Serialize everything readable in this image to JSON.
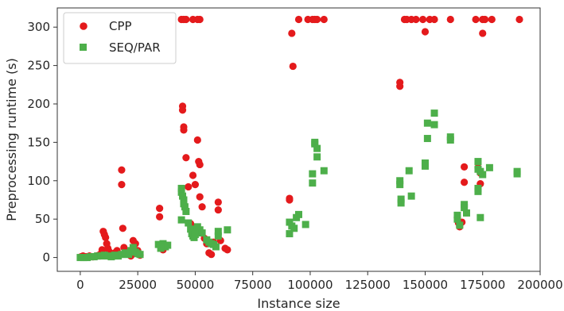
{
  "chart_data": {
    "type": "scatter",
    "xlabel": "Instance size",
    "ylabel": "Preprocessing runtime (s)",
    "xlim": [
      -10000,
      200000
    ],
    "ylim": [
      -18,
      325
    ],
    "xticks": [
      0,
      25000,
      50000,
      75000,
      100000,
      125000,
      150000,
      175000,
      200000
    ],
    "xtick_labels": [
      "0",
      "25000",
      "50000",
      "75000",
      "100000",
      "125000",
      "150000",
      "175000",
      "200000"
    ],
    "yticks": [
      0,
      50,
      100,
      150,
      200,
      250,
      300
    ],
    "ytick_labels": [
      "0",
      "50",
      "100",
      "150",
      "200",
      "250",
      "300"
    ],
    "grid": false,
    "legend_position": "top-left",
    "series": [
      {
        "name": "CPP",
        "color": "#e41a1c",
        "marker": "circle",
        "points": [
          [
            300,
            1
          ],
          [
            1200,
            2
          ],
          [
            2500,
            1
          ],
          [
            4000,
            2
          ],
          [
            5500,
            1
          ],
          [
            7000,
            2
          ],
          [
            8000,
            3
          ],
          [
            9000,
            5
          ],
          [
            9500,
            10
          ],
          [
            10000,
            34
          ],
          [
            10500,
            30
          ],
          [
            11000,
            26
          ],
          [
            11500,
            18
          ],
          [
            12000,
            12
          ],
          [
            12500,
            8
          ],
          [
            13000,
            4
          ],
          [
            14000,
            2
          ],
          [
            15000,
            6
          ],
          [
            16000,
            9
          ],
          [
            17000,
            3
          ],
          [
            18000,
            114
          ],
          [
            18000,
            95
          ],
          [
            18500,
            38
          ],
          [
            19000,
            13
          ],
          [
            20000,
            6
          ],
          [
            21000,
            4
          ],
          [
            22000,
            2
          ],
          [
            23000,
            22
          ],
          [
            24000,
            18
          ],
          [
            25000,
            9
          ],
          [
            26000,
            3
          ],
          [
            34500,
            64
          ],
          [
            34500,
            53
          ],
          [
            35000,
            16
          ],
          [
            36000,
            10
          ],
          [
            44000,
            310
          ],
          [
            45000,
            310
          ],
          [
            46000,
            310
          ],
          [
            49000,
            310
          ],
          [
            51000,
            310
          ],
          [
            52000,
            310
          ],
          [
            44500,
            197
          ],
          [
            44500,
            192
          ],
          [
            45000,
            170
          ],
          [
            45000,
            166
          ],
          [
            46000,
            130
          ],
          [
            47000,
            92
          ],
          [
            48000,
            44
          ],
          [
            48500,
            40
          ],
          [
            49000,
            107
          ],
          [
            50000,
            95
          ],
          [
            51000,
            153
          ],
          [
            51500,
            125
          ],
          [
            52000,
            121
          ],
          [
            52000,
            79
          ],
          [
            53000,
            66
          ],
          [
            54000,
            25
          ],
          [
            55000,
            18
          ],
          [
            56000,
            6
          ],
          [
            57000,
            4
          ],
          [
            58000,
            20
          ],
          [
            60000,
            72
          ],
          [
            60000,
            62
          ],
          [
            61000,
            22
          ],
          [
            63000,
            12
          ],
          [
            64000,
            10
          ],
          [
            91000,
            77
          ],
          [
            91000,
            75
          ],
          [
            92000,
            292
          ],
          [
            92500,
            249
          ],
          [
            95000,
            310
          ],
          [
            99000,
            310
          ],
          [
            101000,
            310
          ],
          [
            102000,
            310
          ],
          [
            103000,
            310
          ],
          [
            106000,
            310
          ],
          [
            139000,
            228
          ],
          [
            139000,
            223
          ],
          [
            141000,
            310
          ],
          [
            142000,
            310
          ],
          [
            144000,
            310
          ],
          [
            146000,
            310
          ],
          [
            149000,
            310
          ],
          [
            150000,
            294
          ],
          [
            152000,
            310
          ],
          [
            154000,
            310
          ],
          [
            161000,
            310
          ],
          [
            164000,
            52
          ],
          [
            164500,
            45
          ],
          [
            165000,
            40
          ],
          [
            166000,
            46
          ],
          [
            167000,
            118
          ],
          [
            167000,
            98
          ],
          [
            172000,
            310
          ],
          [
            173000,
            117
          ],
          [
            174000,
            110
          ],
          [
            174000,
            96
          ],
          [
            175000,
            310
          ],
          [
            175000,
            292
          ],
          [
            176000,
            310
          ],
          [
            179000,
            310
          ],
          [
            191000,
            310
          ]
        ]
      },
      {
        "name": "SEQ/PAR",
        "color": "#4daf4a",
        "marker": "square",
        "points": [
          [
            0,
            0
          ],
          [
            1500,
            0
          ],
          [
            3000,
            0
          ],
          [
            4500,
            1
          ],
          [
            6000,
            1
          ],
          [
            7500,
            2
          ],
          [
            9000,
            2
          ],
          [
            10500,
            3
          ],
          [
            12000,
            2
          ],
          [
            13500,
            1
          ],
          [
            15000,
            3
          ],
          [
            16500,
            2
          ],
          [
            18000,
            4
          ],
          [
            19500,
            6
          ],
          [
            21000,
            4
          ],
          [
            22000,
            9
          ],
          [
            23000,
            13
          ],
          [
            24000,
            7
          ],
          [
            25000,
            5
          ],
          [
            26000,
            4
          ],
          [
            34000,
            17
          ],
          [
            35000,
            12
          ],
          [
            36000,
            18
          ],
          [
            37000,
            14
          ],
          [
            38000,
            16
          ],
          [
            44000,
            90
          ],
          [
            44000,
            85
          ],
          [
            44500,
            80
          ],
          [
            45000,
            75
          ],
          [
            45000,
            70
          ],
          [
            45500,
            66
          ],
          [
            44000,
            49
          ],
          [
            46000,
            60
          ],
          [
            47000,
            45
          ],
          [
            48000,
            37
          ],
          [
            48500,
            31
          ],
          [
            49000,
            28
          ],
          [
            49500,
            26
          ],
          [
            50000,
            30
          ],
          [
            50500,
            34
          ],
          [
            51000,
            40
          ],
          [
            52000,
            36
          ],
          [
            53000,
            32
          ],
          [
            55000,
            23
          ],
          [
            56000,
            20
          ],
          [
            57000,
            18
          ],
          [
            58000,
            17
          ],
          [
            59000,
            14
          ],
          [
            60000,
            34
          ],
          [
            60000,
            28
          ],
          [
            64000,
            36
          ],
          [
            91000,
            46
          ],
          [
            91000,
            31
          ],
          [
            92000,
            41
          ],
          [
            93000,
            38
          ],
          [
            94000,
            52
          ],
          [
            95000,
            56
          ],
          [
            98000,
            43
          ],
          [
            101000,
            109
          ],
          [
            101000,
            97
          ],
          [
            102000,
            150
          ],
          [
            102000,
            148
          ],
          [
            103000,
            142
          ],
          [
            103000,
            131
          ],
          [
            106000,
            113
          ],
          [
            139000,
            100
          ],
          [
            139000,
            95
          ],
          [
            139500,
            76
          ],
          [
            139500,
            71
          ],
          [
            143000,
            113
          ],
          [
            144000,
            80
          ],
          [
            150000,
            123
          ],
          [
            150000,
            119
          ],
          [
            151000,
            175
          ],
          [
            151000,
            155
          ],
          [
            154000,
            188
          ],
          [
            154000,
            173
          ],
          [
            161000,
            157
          ],
          [
            161000,
            153
          ],
          [
            164000,
            55
          ],
          [
            164000,
            50
          ],
          [
            165000,
            42
          ],
          [
            167000,
            69
          ],
          [
            167000,
            65
          ],
          [
            168000,
            58
          ],
          [
            173000,
            125
          ],
          [
            173000,
            115
          ],
          [
            173000,
            90
          ],
          [
            173000,
            86
          ],
          [
            174000,
            112
          ],
          [
            174000,
            52
          ],
          [
            175000,
            108
          ],
          [
            178000,
            117
          ],
          [
            190000,
            112
          ],
          [
            190000,
            109
          ]
        ]
      }
    ]
  }
}
